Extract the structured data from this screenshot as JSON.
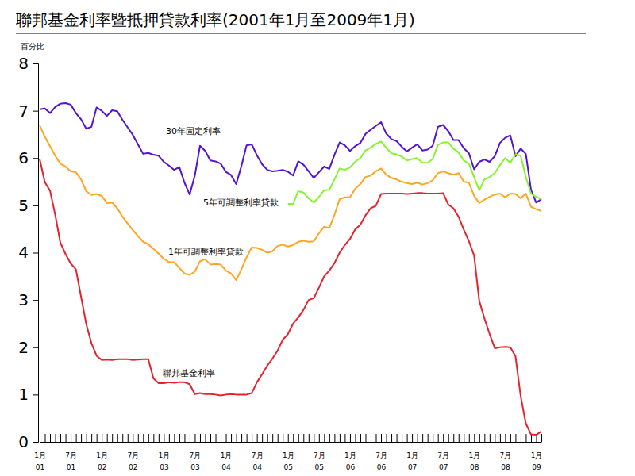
{
  "chart_data": {
    "type": "line",
    "title": "聯邦基金利率暨抵押貸款利率(2001年1月至2009年1月)",
    "y_label": "百分比",
    "categories": [
      "1月\n01",
      null,
      null,
      null,
      null,
      null,
      "7月\n01",
      null,
      null,
      null,
      null,
      null,
      "1月\n02",
      null,
      null,
      null,
      null,
      null,
      "7月\n02",
      null,
      null,
      null,
      null,
      null,
      "1月\n03",
      null,
      null,
      null,
      null,
      null,
      "7月\n03",
      null,
      null,
      null,
      null,
      null,
      "1月\n04",
      null,
      null,
      null,
      null,
      null,
      "7月\n04",
      null,
      null,
      null,
      null,
      null,
      "1月\n05",
      null,
      null,
      null,
      null,
      null,
      "7月\n05",
      null,
      null,
      null,
      null,
      null,
      "1月\n06",
      null,
      null,
      null,
      null,
      null,
      "7月\n06",
      null,
      null,
      null,
      null,
      null,
      "1月\n07",
      null,
      null,
      null,
      null,
      null,
      "7月\n07",
      null,
      null,
      null,
      null,
      null,
      "1月\n08",
      null,
      null,
      null,
      null,
      null,
      "7月\n08",
      null,
      null,
      null,
      null,
      null,
      "1月\n09",
      null
    ],
    "ylim": [
      0,
      8
    ],
    "yticks": [
      0,
      1,
      2,
      3,
      4,
      5,
      6,
      7,
      8
    ],
    "grid": false,
    "series": [
      {
        "name": "30年固定利率",
        "color": "#5313d3",
        "values": [
          7.03,
          7.05,
          6.95,
          7.08,
          7.15,
          7.16,
          7.13,
          6.95,
          6.82,
          6.62,
          6.66,
          7.07,
          7.0,
          6.89,
          7.01,
          6.99,
          6.81,
          6.65,
          6.49,
          6.29,
          6.09,
          6.11,
          6.07,
          6.05,
          5.92,
          5.84,
          5.75,
          5.81,
          5.48,
          5.23,
          5.63,
          6.26,
          6.15,
          5.95,
          5.93,
          5.88,
          5.71,
          5.64,
          5.45,
          5.83,
          6.27,
          6.29,
          6.06,
          5.87,
          5.75,
          5.72,
          5.73,
          5.75,
          5.71,
          5.63,
          5.93,
          5.86,
          5.72,
          5.58,
          5.7,
          5.82,
          5.77,
          6.07,
          6.33,
          6.27,
          6.15,
          6.25,
          6.32,
          6.51,
          6.6,
          6.68,
          6.76,
          6.52,
          6.4,
          6.36,
          6.24,
          6.14,
          6.22,
          6.29,
          6.16,
          6.18,
          6.26,
          6.66,
          6.7,
          6.57,
          6.38,
          6.38,
          6.21,
          6.1,
          5.76,
          5.92,
          5.97,
          5.92,
          6.04,
          6.32,
          6.43,
          6.48,
          6.04,
          6.2,
          6.09,
          5.33,
          5.06,
          5.13
        ]
      },
      {
        "name": "5年可調整利率貸款",
        "color": "#84f52c",
        "values": [
          null,
          null,
          null,
          null,
          null,
          null,
          null,
          null,
          null,
          null,
          null,
          null,
          null,
          null,
          null,
          null,
          null,
          null,
          null,
          null,
          null,
          null,
          null,
          null,
          null,
          null,
          null,
          null,
          null,
          null,
          null,
          null,
          null,
          null,
          null,
          null,
          null,
          null,
          null,
          null,
          null,
          null,
          null,
          null,
          null,
          null,
          null,
          null,
          5.03,
          5.03,
          5.3,
          5.27,
          5.15,
          5.06,
          5.18,
          5.32,
          5.33,
          5.55,
          5.78,
          5.75,
          5.8,
          5.92,
          6.0,
          6.16,
          6.22,
          6.3,
          6.35,
          6.22,
          6.1,
          6.08,
          6.03,
          5.95,
          5.98,
          6.0,
          5.9,
          5.9,
          5.98,
          6.28,
          6.33,
          6.33,
          6.2,
          6.12,
          5.95,
          5.88,
          5.6,
          5.32,
          5.55,
          5.6,
          5.68,
          5.85,
          6.0,
          5.9,
          6.08,
          6.05,
          5.6,
          5.25,
          5.18,
          5.13
        ]
      },
      {
        "name": "1年可調整利率貸款",
        "color": "#ffa51f",
        "values": [
          6.69,
          6.45,
          6.25,
          6.05,
          5.88,
          5.82,
          5.72,
          5.7,
          5.55,
          5.3,
          5.22,
          5.24,
          5.2,
          5.05,
          5.06,
          4.94,
          4.76,
          4.62,
          4.48,
          4.35,
          4.23,
          4.18,
          4.08,
          3.98,
          3.87,
          3.8,
          3.8,
          3.68,
          3.56,
          3.53,
          3.6,
          3.82,
          3.86,
          3.75,
          3.76,
          3.75,
          3.62,
          3.56,
          3.42,
          3.65,
          3.9,
          4.11,
          4.1,
          4.06,
          4.0,
          4.03,
          4.14,
          4.17,
          4.13,
          4.16,
          4.23,
          4.25,
          4.23,
          4.24,
          4.41,
          4.55,
          4.52,
          4.8,
          5.13,
          5.17,
          5.17,
          5.35,
          5.45,
          5.6,
          5.63,
          5.72,
          5.78,
          5.65,
          5.58,
          5.55,
          5.5,
          5.47,
          5.45,
          5.48,
          5.44,
          5.47,
          5.53,
          5.68,
          5.72,
          5.68,
          5.65,
          5.68,
          5.5,
          5.48,
          5.2,
          5.05,
          5.12,
          5.18,
          5.23,
          5.25,
          5.17,
          5.25,
          5.24,
          5.15,
          5.25,
          4.97,
          4.92,
          4.88
        ]
      },
      {
        "name": "聯邦基金利率",
        "color": "#e5232e",
        "values": [
          5.98,
          5.49,
          5.31,
          4.8,
          4.21,
          3.97,
          3.77,
          3.65,
          3.07,
          2.49,
          2.09,
          1.82,
          1.73,
          1.74,
          1.73,
          1.75,
          1.75,
          1.75,
          1.73,
          1.74,
          1.75,
          1.75,
          1.34,
          1.24,
          1.24,
          1.26,
          1.25,
          1.26,
          1.26,
          1.22,
          1.01,
          1.03,
          1.01,
          1.01,
          1.0,
          0.98,
          1.0,
          1.01,
          1.0,
          1.0,
          1.0,
          1.03,
          1.26,
          1.43,
          1.61,
          1.76,
          1.93,
          2.16,
          2.28,
          2.5,
          2.63,
          2.79,
          3.0,
          3.04,
          3.26,
          3.5,
          3.62,
          3.78,
          4.0,
          4.16,
          4.29,
          4.49,
          4.59,
          4.79,
          4.94,
          4.99,
          5.24,
          5.25,
          5.25,
          5.25,
          5.25,
          5.24,
          5.25,
          5.26,
          5.26,
          5.25,
          5.25,
          5.25,
          5.26,
          5.02,
          4.94,
          4.76,
          4.49,
          4.24,
          3.94,
          2.98,
          2.61,
          2.28,
          1.98,
          2.0,
          2.01,
          2.0,
          1.81,
          0.97,
          0.39,
          0.16,
          0.15,
          0.22
        ]
      }
    ]
  }
}
